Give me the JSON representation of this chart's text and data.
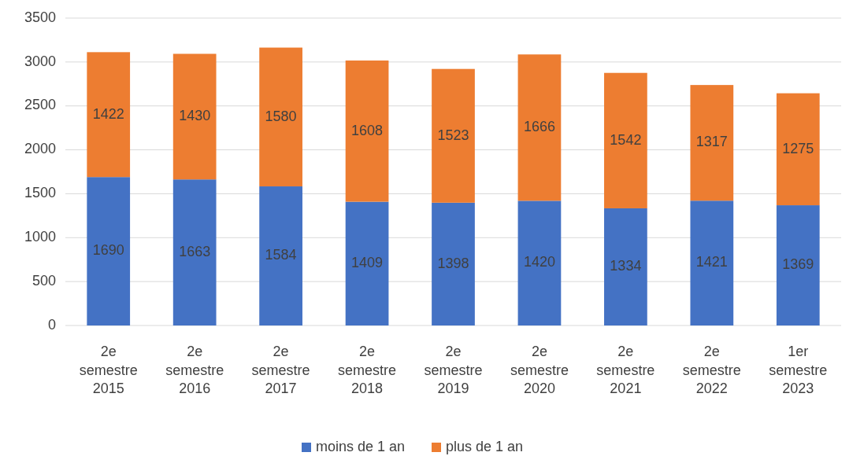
{
  "chart_data": {
    "type": "bar",
    "stacked": true,
    "categories": [
      "2e semestre 2015",
      "2e semestre 2016",
      "2e semestre 2017",
      "2e semestre 2018",
      "2e semestre 2019",
      "2e semestre 2020",
      "2e semestre 2021",
      "2e semestre 2022",
      "1er semestre 2023"
    ],
    "series": [
      {
        "name": "moins de 1 an",
        "color": "#4472c4",
        "values": [
          1690,
          1663,
          1584,
          1409,
          1398,
          1420,
          1334,
          1421,
          1369
        ]
      },
      {
        "name": "plus de 1 an",
        "color": "#ed7d31",
        "values": [
          1422,
          1430,
          1580,
          1608,
          1523,
          1666,
          1542,
          1317,
          1275
        ]
      }
    ],
    "ylim": [
      0,
      3500
    ],
    "yticks": [
      0,
      500,
      1000,
      1500,
      2000,
      2500,
      3000,
      3500
    ],
    "grid": "y",
    "data_labels": true,
    "legend": "bottom"
  }
}
